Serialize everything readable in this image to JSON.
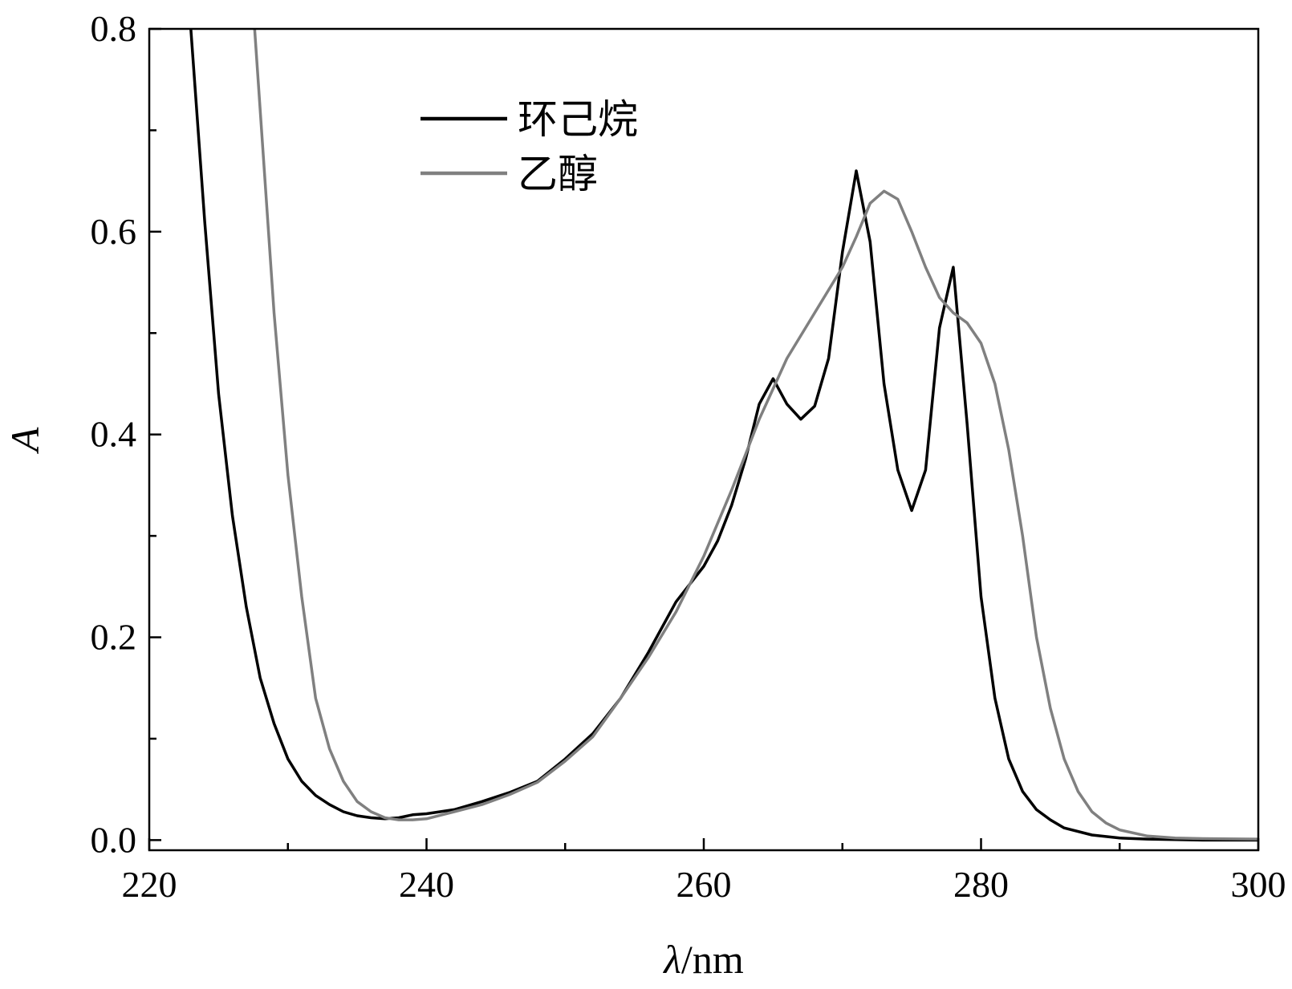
{
  "chart_data": {
    "type": "line",
    "title": "",
    "xlabel": "λ/nm",
    "xlabel_italic_part": "λ",
    "xlabel_unit_part": "/nm",
    "ylabel": "A",
    "xlim": [
      220,
      300
    ],
    "ylim": [
      -0.01,
      0.8
    ],
    "x_ticks": [
      220,
      240,
      260,
      280,
      300
    ],
    "x_tick_labels": [
      "220",
      "240",
      "260",
      "280",
      "300"
    ],
    "x_minor_ticks": [
      230,
      250,
      270,
      290
    ],
    "y_ticks": [
      0.0,
      0.2,
      0.4,
      0.6,
      0.8
    ],
    "y_tick_labels": [
      "0.0",
      "0.2",
      "0.4",
      "0.6",
      "0.8"
    ],
    "y_minor_ticks": [
      0.1,
      0.3,
      0.5,
      0.7
    ],
    "grid": false,
    "legend_position": "top-left",
    "series": [
      {
        "name": "环己烷",
        "color": "#000000",
        "points": [
          [
            223.0,
            0.8
          ],
          [
            224.0,
            0.61
          ],
          [
            225.0,
            0.44
          ],
          [
            226.0,
            0.32
          ],
          [
            227.0,
            0.23
          ],
          [
            228.0,
            0.16
          ],
          [
            229.0,
            0.115
          ],
          [
            230.0,
            0.08
          ],
          [
            231.0,
            0.058
          ],
          [
            232.0,
            0.044
          ],
          [
            233.0,
            0.035
          ],
          [
            234.0,
            0.028
          ],
          [
            235.0,
            0.024
          ],
          [
            236.0,
            0.022
          ],
          [
            237.0,
            0.021
          ],
          [
            238.0,
            0.022
          ],
          [
            239.0,
            0.025
          ],
          [
            240.0,
            0.026
          ],
          [
            242.0,
            0.03
          ],
          [
            244.0,
            0.038
          ],
          [
            246.0,
            0.047
          ],
          [
            248.0,
            0.058
          ],
          [
            250.0,
            0.08
          ],
          [
            252.0,
            0.105
          ],
          [
            254.0,
            0.14
          ],
          [
            256.0,
            0.185
          ],
          [
            258.0,
            0.235
          ],
          [
            260.0,
            0.27
          ],
          [
            261.0,
            0.295
          ],
          [
            262.0,
            0.33
          ],
          [
            263.0,
            0.375
          ],
          [
            264.0,
            0.43
          ],
          [
            265.0,
            0.455
          ],
          [
            266.0,
            0.43
          ],
          [
            267.0,
            0.415
          ],
          [
            268.0,
            0.428
          ],
          [
            269.0,
            0.475
          ],
          [
            270.0,
            0.58
          ],
          [
            271.0,
            0.66
          ],
          [
            272.0,
            0.59
          ],
          [
            273.0,
            0.45
          ],
          [
            274.0,
            0.365
          ],
          [
            275.0,
            0.325
          ],
          [
            276.0,
            0.365
          ],
          [
            277.0,
            0.505
          ],
          [
            278.0,
            0.565
          ],
          [
            279.0,
            0.41
          ],
          [
            280.0,
            0.24
          ],
          [
            281.0,
            0.14
          ],
          [
            282.0,
            0.08
          ],
          [
            283.0,
            0.048
          ],
          [
            284.0,
            0.03
          ],
          [
            285.0,
            0.02
          ],
          [
            286.0,
            0.012
          ],
          [
            288.0,
            0.005
          ],
          [
            290.0,
            0.002
          ],
          [
            292.0,
            0.001
          ],
          [
            296.0,
            0.0
          ],
          [
            300.0,
            0.0
          ]
        ]
      },
      {
        "name": "乙醇",
        "color": "#808080",
        "points": [
          [
            227.6,
            0.8
          ],
          [
            229.0,
            0.52
          ],
          [
            230.0,
            0.36
          ],
          [
            231.0,
            0.24
          ],
          [
            232.0,
            0.14
          ],
          [
            233.0,
            0.09
          ],
          [
            234.0,
            0.058
          ],
          [
            235.0,
            0.038
          ],
          [
            236.0,
            0.028
          ],
          [
            237.0,
            0.022
          ],
          [
            238.0,
            0.02
          ],
          [
            239.0,
            0.02
          ],
          [
            240.0,
            0.021
          ],
          [
            242.0,
            0.028
          ],
          [
            244.0,
            0.035
          ],
          [
            246.0,
            0.045
          ],
          [
            248.0,
            0.057
          ],
          [
            250.0,
            0.078
          ],
          [
            252.0,
            0.102
          ],
          [
            254.0,
            0.14
          ],
          [
            256.0,
            0.18
          ],
          [
            258.0,
            0.225
          ],
          [
            260.0,
            0.28
          ],
          [
            262.0,
            0.345
          ],
          [
            264.0,
            0.415
          ],
          [
            266.0,
            0.475
          ],
          [
            268.0,
            0.52
          ],
          [
            270.0,
            0.565
          ],
          [
            271.0,
            0.595
          ],
          [
            272.0,
            0.628
          ],
          [
            273.0,
            0.64
          ],
          [
            274.0,
            0.632
          ],
          [
            275.0,
            0.6
          ],
          [
            276.0,
            0.565
          ],
          [
            277.0,
            0.535
          ],
          [
            278.0,
            0.52
          ],
          [
            279.0,
            0.51
          ],
          [
            280.0,
            0.49
          ],
          [
            281.0,
            0.45
          ],
          [
            282.0,
            0.385
          ],
          [
            283.0,
            0.3
          ],
          [
            284.0,
            0.2
          ],
          [
            285.0,
            0.13
          ],
          [
            286.0,
            0.08
          ],
          [
            287.0,
            0.048
          ],
          [
            288.0,
            0.028
          ],
          [
            289.0,
            0.017
          ],
          [
            290.0,
            0.01
          ],
          [
            292.0,
            0.004
          ],
          [
            294.0,
            0.002
          ],
          [
            296.0,
            0.0015
          ],
          [
            300.0,
            0.001
          ]
        ]
      }
    ]
  }
}
